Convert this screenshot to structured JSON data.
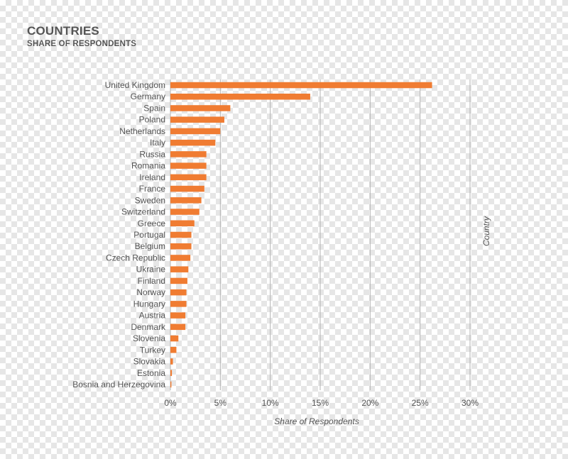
{
  "header": {
    "title": "COUNTRIES",
    "subtitle": "SHARE OF RESPONDENTS"
  },
  "chart_data": {
    "type": "bar",
    "orientation": "horizontal",
    "title": "COUNTRIES",
    "subtitle": "SHARE OF RESPONDENTS",
    "xlabel": "Share of Respondents",
    "ylabel": "Country",
    "xlim": [
      0,
      30
    ],
    "x_ticks": [
      0,
      5,
      10,
      15,
      20,
      25,
      30
    ],
    "x_tick_labels": [
      "0%",
      "5%",
      "10%",
      "15%",
      "20%",
      "25%",
      "30%"
    ],
    "grid": true,
    "bar_color": "#f07c32",
    "categories": [
      "United Kingdom",
      "Germany",
      "Spain",
      "Poland",
      "Netherlands",
      "Italy",
      "Russia",
      "Romania",
      "Ireland",
      "France",
      "Sweden",
      "Switzerland",
      "Greece",
      "Portugal",
      "Belgium",
      "Czech Republic",
      "Ukraine",
      "Finland",
      "Norway",
      "Hungary",
      "Austria",
      "Denmark",
      "Slovenia",
      "Turkey",
      "Slovakia",
      "Estonia",
      "Bosnia and Herzegovina"
    ],
    "values": [
      26.2,
      14.0,
      6.0,
      5.4,
      5.0,
      4.5,
      3.6,
      3.6,
      3.6,
      3.4,
      3.1,
      2.9,
      2.4,
      2.1,
      2.1,
      2.0,
      1.8,
      1.7,
      1.6,
      1.6,
      1.5,
      1.5,
      0.8,
      0.6,
      0.25,
      0.15,
      0.1
    ]
  }
}
